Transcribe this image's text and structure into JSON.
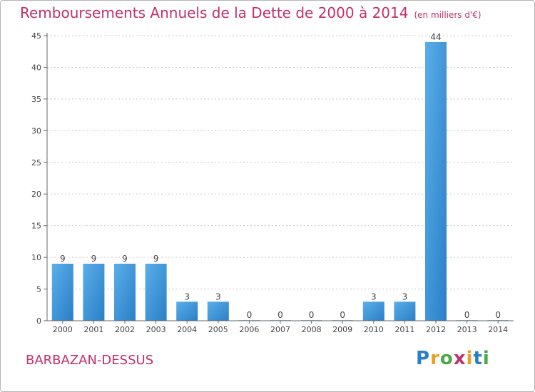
{
  "title": "Remboursements Annuels de la Dette de 2000 à 2014",
  "subtitle": "(en milliers d'€)",
  "city": "BARBAZAN-DESSUS",
  "brand": "Proxiti",
  "colors": {
    "accent": "#c0306a",
    "bar_top": "#5aaee8",
    "bar_bottom": "#2a7fc8",
    "grid": "#c8c8c8"
  },
  "chart_data": {
    "type": "bar",
    "title": "Remboursements Annuels de la Dette de 2000 à 2014",
    "subtitle": "(en milliers d'€)",
    "categories": [
      "2000",
      "2001",
      "2002",
      "2003",
      "2004",
      "2005",
      "2006",
      "2007",
      "2008",
      "2009",
      "2010",
      "2011",
      "2012",
      "2013",
      "2014"
    ],
    "values": [
      9,
      9,
      9,
      9,
      3,
      3,
      0,
      0,
      0,
      0,
      3,
      3,
      44,
      0,
      0
    ],
    "yticks": [
      0,
      5,
      10,
      15,
      20,
      25,
      30,
      35,
      40,
      45
    ],
    "ylim": [
      0,
      45
    ],
    "grid": true
  }
}
